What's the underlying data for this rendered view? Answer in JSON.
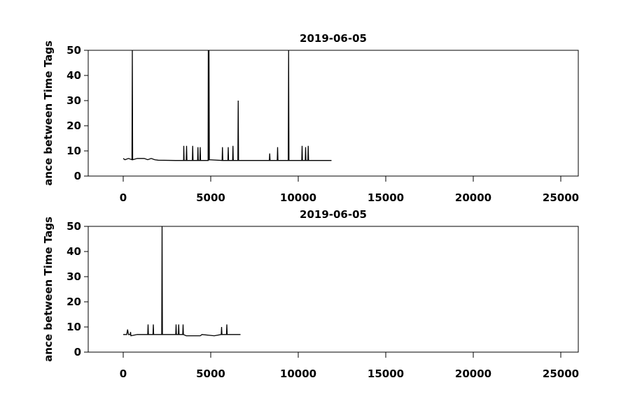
{
  "chart_data": [
    {
      "type": "line",
      "title": "2019-06-05",
      "y_label": "ance between Time Tags",
      "xlim": [
        -2000,
        26000
      ],
      "xticks": [
        0,
        5000,
        10000,
        15000,
        20000,
        25000
      ],
      "ylim": [
        0,
        50
      ],
      "yticks": [
        0,
        10,
        20,
        30,
        40,
        50
      ],
      "color": "#000000",
      "x": [
        0,
        100,
        300,
        500,
        520,
        540,
        800,
        1200,
        1400,
        1600,
        1800,
        2000,
        3000,
        3450,
        3460,
        3480,
        3600,
        3620,
        3640,
        3950,
        3970,
        3990,
        4250,
        4270,
        4290,
        4380,
        4400,
        4420,
        4850,
        4860,
        4880,
        4900,
        4920,
        5650,
        5670,
        5690,
        5980,
        6000,
        6020,
        6250,
        6270,
        6290,
        6550,
        6570,
        6590,
        8350,
        8370,
        8390,
        8800,
        8820,
        8840,
        9430,
        9450,
        9470,
        10200,
        10220,
        10240,
        10400,
        10420,
        10440,
        10550,
        10570,
        10590,
        11900
      ],
      "values": [
        7,
        6.5,
        7,
        6.5,
        50,
        6.5,
        7,
        7,
        6.5,
        7,
        6.5,
        6.3,
        6.2,
        6.2,
        12,
        6.2,
        6.2,
        12,
        6.2,
        6.2,
        12,
        6.2,
        6.2,
        11.5,
        6.2,
        6.2,
        11.5,
        6.2,
        6.2,
        50,
        6.2,
        50,
        6.5,
        6.2,
        11.5,
        6.2,
        6.2,
        11.5,
        6.2,
        6.2,
        12,
        6.2,
        6.2,
        30,
        6.2,
        6.2,
        9,
        6.2,
        6.2,
        11.5,
        6.2,
        6.2,
        50,
        6.2,
        6.2,
        12,
        6.2,
        6.2,
        11.5,
        6.2,
        6.2,
        12,
        6.2,
        6.2
      ]
    },
    {
      "type": "line",
      "title": "2019-06-05",
      "y_label": "ance between Time Tags",
      "xlim": [
        -2000,
        26000
      ],
      "xticks": [
        0,
        5000,
        10000,
        15000,
        20000,
        25000
      ],
      "ylim": [
        0,
        50
      ],
      "yticks": [
        0,
        10,
        20,
        30,
        40,
        50
      ],
      "color": "#000000",
      "x": [
        0,
        200,
        250,
        300,
        400,
        420,
        440,
        800,
        1400,
        1420,
        1440,
        1700,
        1720,
        1740,
        2200,
        2220,
        2240,
        3000,
        3020,
        3040,
        3150,
        3170,
        3190,
        3400,
        3420,
        3440,
        3600,
        4400,
        4500,
        5200,
        5600,
        5620,
        5640,
        5900,
        5920,
        5940,
        6700
      ],
      "values": [
        7,
        7,
        9,
        7,
        7,
        8,
        6.5,
        7,
        7,
        11,
        7,
        7,
        11,
        7,
        7,
        50,
        7,
        7,
        11,
        7,
        7,
        11,
        7,
        7,
        11,
        7,
        6.5,
        6.5,
        7,
        6.5,
        7,
        10,
        7,
        7,
        11,
        7,
        7
      ]
    }
  ]
}
